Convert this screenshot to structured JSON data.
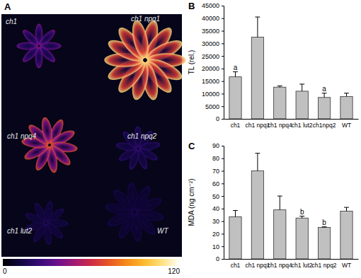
{
  "chart_data": [
    {
      "type": "image",
      "title": "A",
      "labels": [
        "ch1",
        "ch1 npq1",
        "ch1 npq4",
        "ch1 npq2",
        "ch1 lut2",
        "WT"
      ],
      "colorbar": {
        "range": [
          0,
          120
        ],
        "ticks": [
          0,
          120
        ]
      }
    },
    {
      "type": "bar",
      "title": "B",
      "y_label": "TL (rel.)",
      "categories": [
        "ch1",
        "ch1 npq1",
        "ch1 npq4",
        "ch1 lut2",
        "ch1npq2",
        "WT"
      ],
      "values": [
        16700,
        32500,
        12600,
        11000,
        8500,
        8900
      ],
      "errors": [
        2000,
        8000,
        500,
        2800,
        1700,
        1300
      ],
      "letters": [
        "a",
        null,
        null,
        null,
        "a",
        null
      ],
      "color": "#c0c0c0",
      "ylim": [
        0,
        45000
      ],
      "yticks": [
        0,
        5000,
        10000,
        15000,
        20000,
        25000,
        30000,
        35000,
        40000,
        45000
      ]
    },
    {
      "type": "bar",
      "title": "C",
      "y_label": "MDA (ng cm⁻²)",
      "categories": [
        "ch1",
        "ch1 npq1",
        "ch1 npq4",
        "ch1 lut2",
        "ch1 npq2",
        "WT"
      ],
      "values": [
        33.5,
        70,
        39,
        32.5,
        25,
        38
      ],
      "errors": [
        5,
        14,
        11,
        1.5,
        0.5,
        3
      ],
      "letters": [
        null,
        null,
        null,
        "b",
        "b",
        null
      ],
      "color": "#c0c0c0",
      "ylim": [
        0,
        90
      ],
      "yticks": [
        0,
        10,
        20,
        30,
        40,
        50,
        60,
        70,
        80,
        90
      ]
    }
  ]
}
